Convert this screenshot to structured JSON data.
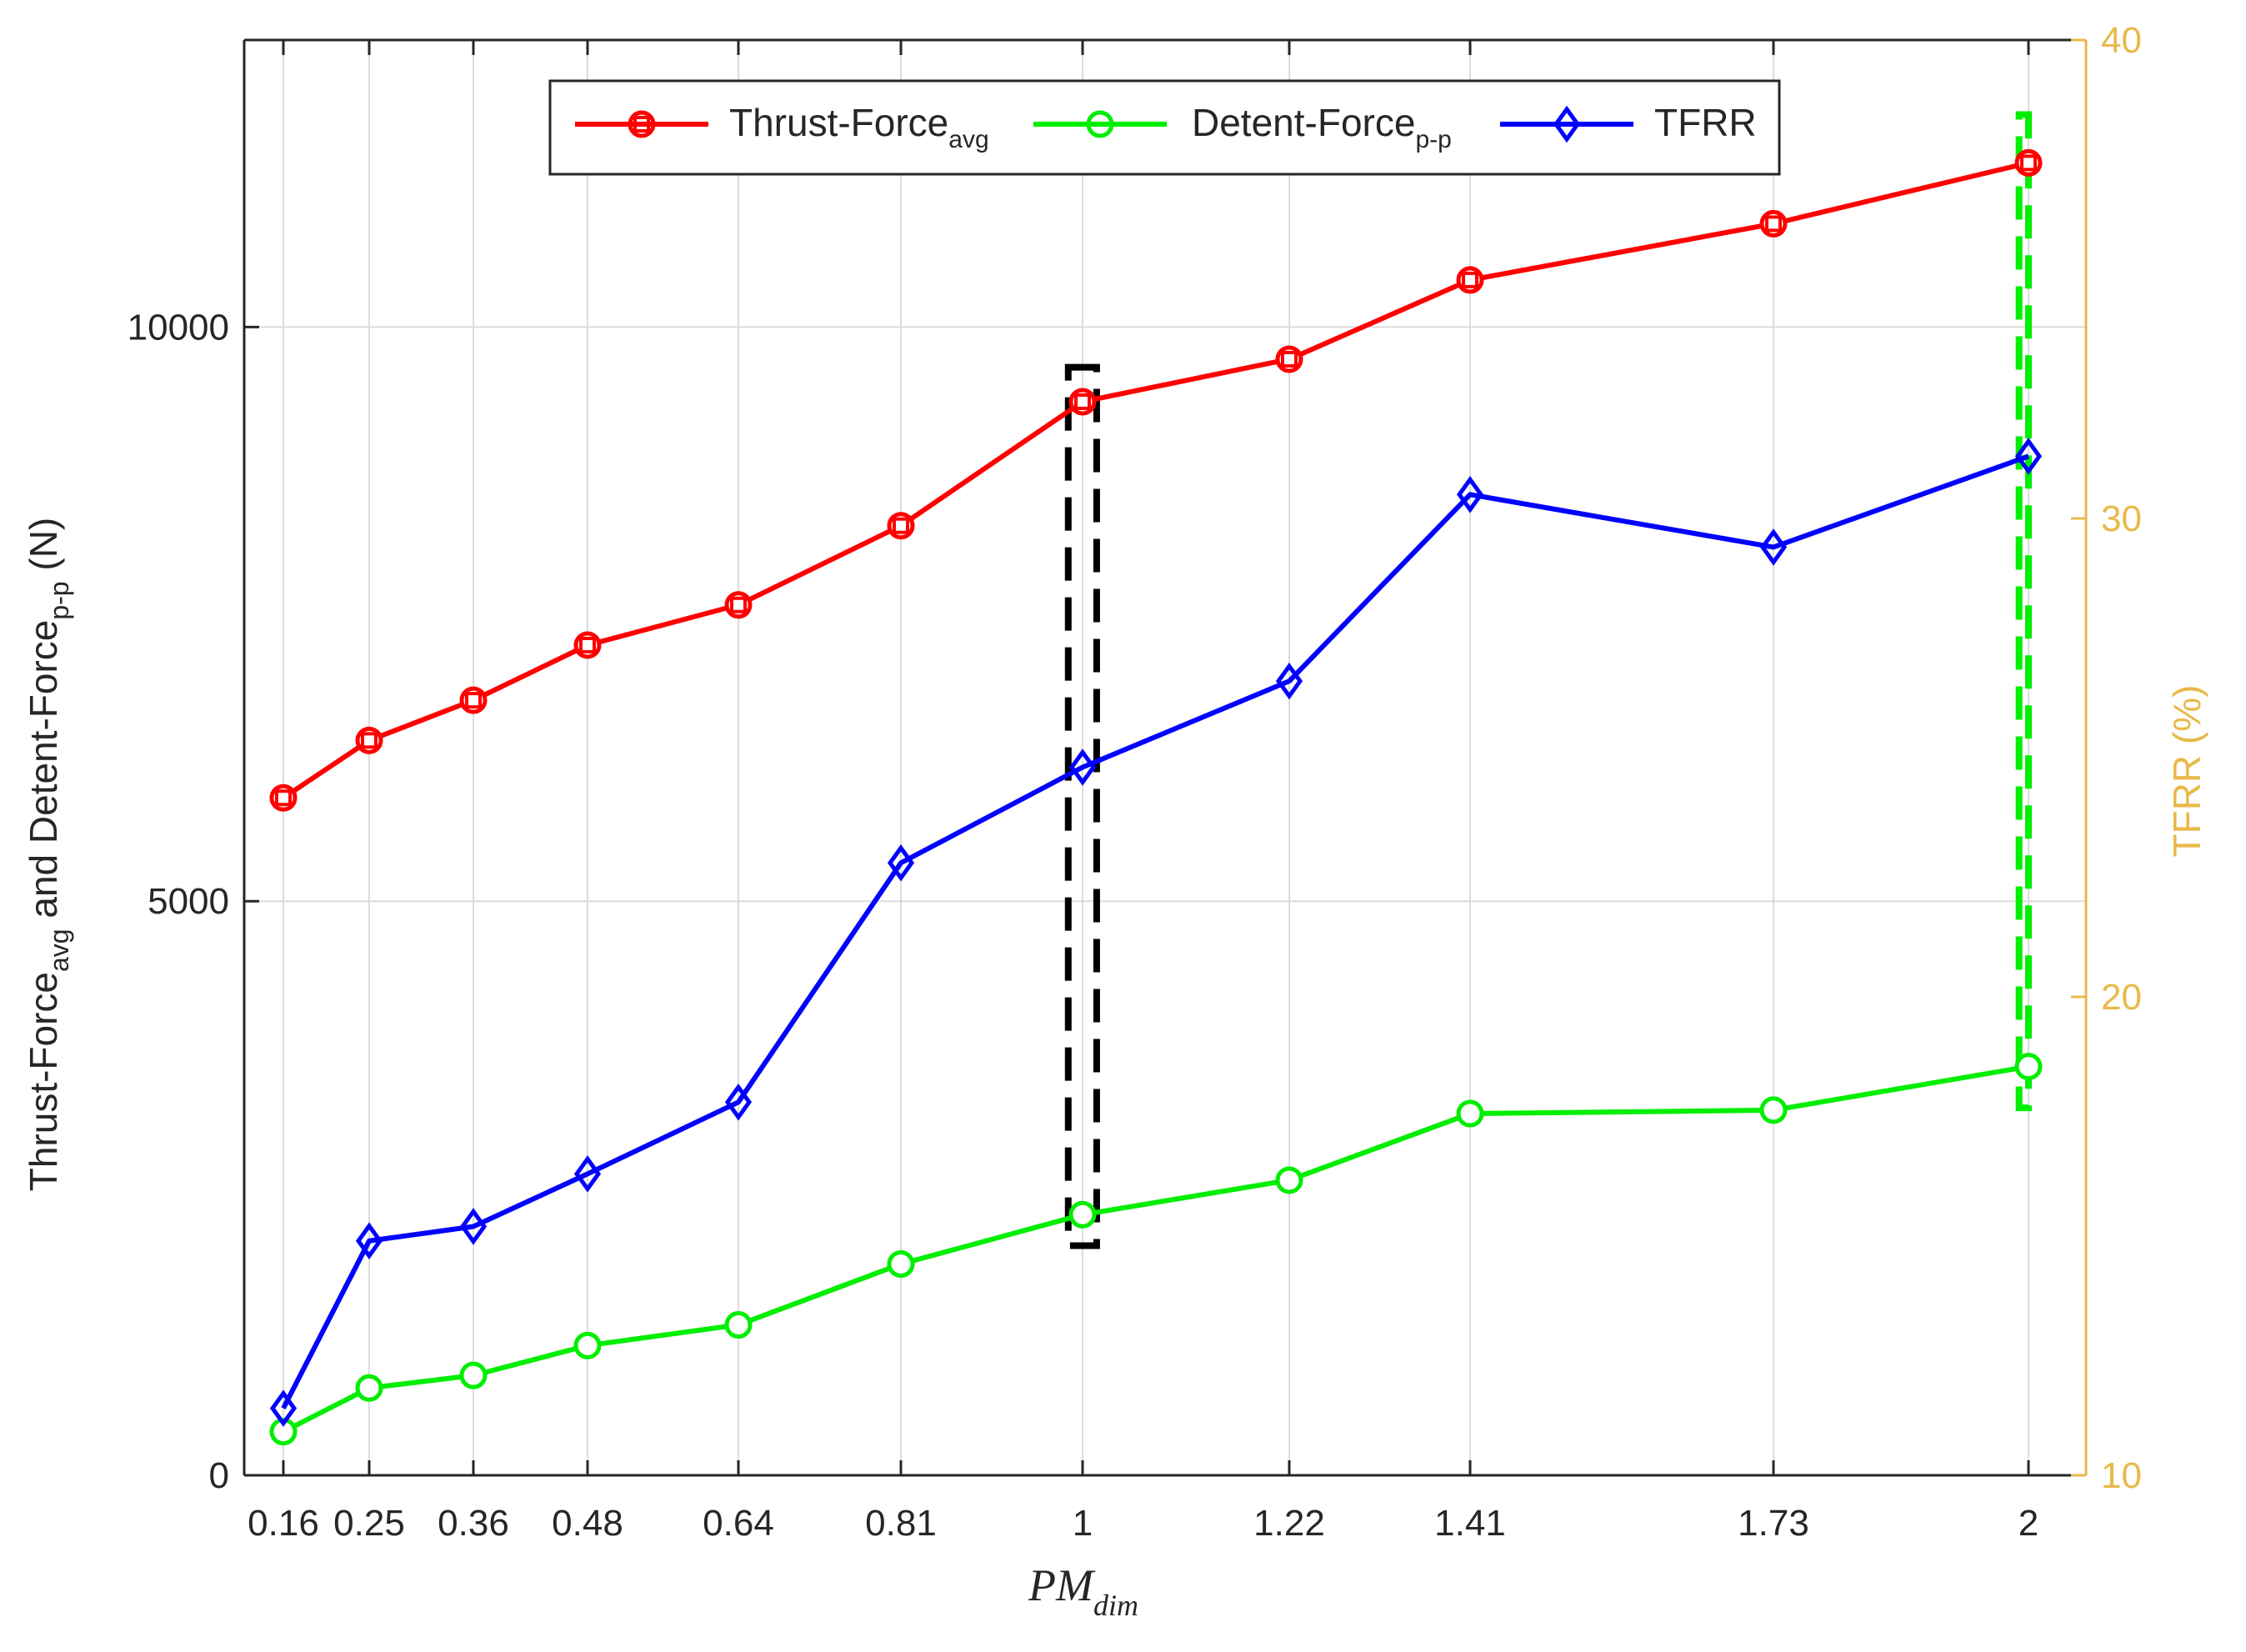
{
  "chart_data": {
    "type": "line",
    "x": [
      0.16,
      0.25,
      0.36,
      0.48,
      0.64,
      0.81,
      1,
      1.22,
      1.41,
      1.73,
      2
    ],
    "x_tick_labels": [
      "0.16",
      "0.25",
      "0.36",
      "0.48",
      "0.64",
      "0.81",
      "1",
      "1.22",
      "1.41",
      "1.73",
      "2"
    ],
    "xlabel": {
      "main": "PM",
      "sub": "dim"
    },
    "ylabel_left": {
      "part1": "Thrust-Force",
      "sub1": "avg",
      "part2": " and Detent-Force",
      "sub2": "p-p",
      "part3": " (N)"
    },
    "ylabel_right": "TFRR (%)",
    "ylim_left": [
      0,
      12500
    ],
    "yticks_left": [
      0,
      5000,
      10000
    ],
    "ytick_labels_left": [
      "0",
      "5000",
      "10000"
    ],
    "ylim_right": [
      10,
      40
    ],
    "yticks_right": [
      10,
      20,
      30,
      40
    ],
    "ytick_labels_right": [
      "10",
      "20",
      "30",
      "40"
    ],
    "grid": true,
    "legend_position": "top-center",
    "series": [
      {
        "name": "Thrust-Force",
        "name_sub": "avg",
        "axis": "left",
        "color": "#ff0000",
        "marker": "circle-square",
        "values": [
          5900,
          6400,
          6750,
          7230,
          7580,
          8270,
          9350,
          9720,
          10410,
          10900,
          11430
        ]
      },
      {
        "name": "Detent-Force",
        "name_sub": "p-p",
        "axis": "left",
        "color": "#00ee00",
        "marker": "circle",
        "values": [
          380,
          760,
          870,
          1130,
          1310,
          1840,
          2270,
          2570,
          3150,
          3180,
          3560
        ]
      },
      {
        "name": "TFRR",
        "axis": "right",
        "color": "#0000ff",
        "marker": "diamond",
        "values": [
          11.4,
          14.9,
          15.2,
          16.3,
          17.8,
          22.8,
          24.8,
          26.6,
          30.5,
          29.4,
          31.3
        ]
      }
    ],
    "annotations": [
      {
        "type": "dashed-box",
        "color": "#000000",
        "x_range": [
          0.985,
          1.015
        ],
        "y_left_range": [
          2000,
          9650
        ]
      },
      {
        "type": "dashed-box",
        "color": "#00ee00",
        "x_range": [
          1.99,
          2.01
        ],
        "y_left_range": [
          3200,
          11850
        ]
      }
    ],
    "colors": {
      "right_axis": "#e8b94a",
      "grid": "#dcdcdc",
      "axis": "#262626"
    }
  }
}
